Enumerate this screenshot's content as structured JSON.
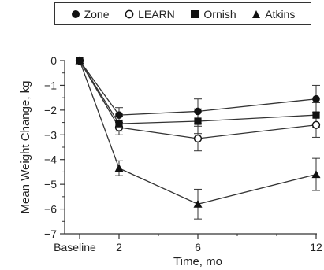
{
  "chart_data": {
    "type": "line",
    "xlabel": "Time, mo",
    "ylabel": "Mean Weight Change, kg",
    "x_ticks": [
      "Baseline",
      "2",
      "6",
      "12"
    ],
    "x_numeric": [
      0,
      2,
      6,
      12
    ],
    "ylim": [
      -7,
      0
    ],
    "y_ticks": [
      0,
      -1,
      -2,
      -3,
      -4,
      -5,
      -6,
      -7
    ],
    "grid": false,
    "legend_position": "top",
    "series": [
      {
        "name": "Zone",
        "marker": "filled-circle",
        "color": "#111111",
        "values": [
          0,
          -2.2,
          -2.05,
          -1.55
        ],
        "error": [
          0,
          0.3,
          0.5,
          0.55
        ]
      },
      {
        "name": "LEARN",
        "marker": "open-circle",
        "color": "#111111",
        "values": [
          0,
          -2.7,
          -3.15,
          -2.6
        ],
        "error": [
          0,
          0.3,
          0.5,
          0.5
        ]
      },
      {
        "name": "Ornish",
        "marker": "filled-square",
        "color": "#111111",
        "values": [
          0,
          -2.55,
          -2.45,
          -2.2
        ],
        "error": [
          0,
          0.3,
          0.5,
          0.5
        ]
      },
      {
        "name": "Atkins",
        "marker": "filled-triangle",
        "color": "#111111",
        "values": [
          0,
          -4.35,
          -5.8,
          -4.6
        ],
        "error": [
          0,
          0.3,
          0.6,
          0.65
        ]
      }
    ]
  }
}
